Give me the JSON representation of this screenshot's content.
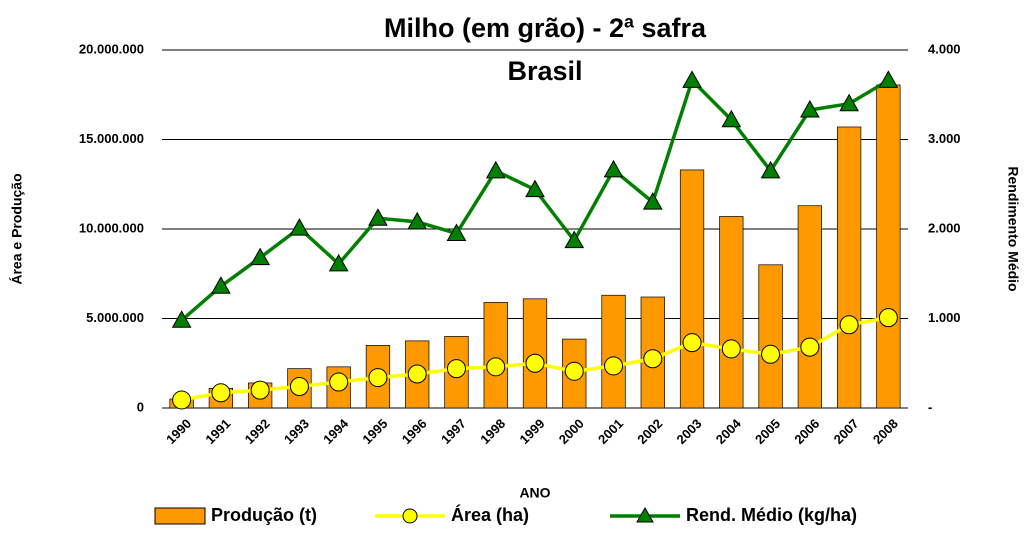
{
  "chart_data": {
    "type": "bar_line",
    "title": "Milho (em grão) - 2ª safra",
    "subtitle": "Brasil",
    "x_label": "ANO",
    "y_label": "Área e Produção",
    "y2_label": "Rendimento Médio",
    "categories": [
      "1990",
      "1991",
      "1992",
      "1993",
      "1994",
      "1995",
      "1996",
      "1997",
      "1998",
      "1999",
      "2000",
      "2001",
      "2002",
      "2003",
      "2004",
      "2005",
      "2006",
      "2007",
      "2008"
    ],
    "series": [
      {
        "name": "Produção (t)",
        "type": "bar",
        "color": "#ff9900",
        "values": [
          500000,
          1100000,
          1400000,
          2200000,
          2300000,
          3500000,
          3750000,
          4000000,
          5900000,
          6100000,
          3850000,
          6300000,
          6200000,
          13300000,
          10700000,
          8000000,
          11300000,
          15700000,
          18050000
        ]
      },
      {
        "name": "Área (ha)",
        "type": "line",
        "marker": "circle",
        "color": "#ffff00",
        "values": [
          450000,
          850000,
          1000000,
          1200000,
          1450000,
          1700000,
          1900000,
          2200000,
          2300000,
          2500000,
          2050000,
          2350000,
          2750000,
          3650000,
          3300000,
          3000000,
          3400000,
          4650000,
          5050000
        ]
      },
      {
        "name": "Rend. Médio (kg/ha)",
        "type": "line",
        "marker": "triangle",
        "color": "#008000",
        "axis": "y2",
        "values": [
          980,
          1360,
          1680,
          2010,
          1610,
          2120,
          2080,
          1950,
          2650,
          2440,
          1870,
          2660,
          2300,
          3660,
          3220,
          2650,
          3330,
          3400,
          3660
        ]
      }
    ],
    "ylim": [
      0,
      20000000
    ],
    "yticks": [
      0,
      {
        "value": 5000000,
        "label": "5.000.000"
      },
      {
        "value": 10000000,
        "label": "10.000.000"
      },
      {
        "value": 15000000,
        "label": "15.000.000"
      },
      {
        "value": 20000000,
        "label": "20.000.000"
      }
    ],
    "y2lim": [
      0,
      4000
    ],
    "y2ticks": [
      {
        "value": 0,
        "label": "-"
      },
      {
        "value": 1000,
        "label": "1.000"
      },
      {
        "value": 2000,
        "label": "2.000"
      },
      {
        "value": 3000,
        "label": "3.000"
      },
      {
        "value": 4000,
        "label": "4.000"
      }
    ],
    "grid": true,
    "legend": "bottom"
  }
}
